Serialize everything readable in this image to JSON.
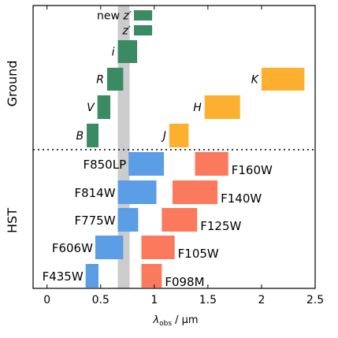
{
  "chart_data": {
    "type": "bar",
    "xlabel": "λobs / μm",
    "xlim": [
      -0.13,
      2.5
    ],
    "x_ticks": [
      "0",
      "0.5",
      "1",
      "1.5",
      "2",
      "2.5"
    ],
    "x_tick_values": [
      0,
      0.5,
      1,
      1.5,
      2,
      2.5
    ],
    "groups": [
      "Ground",
      "HST"
    ],
    "highlight_band": [
      0.66,
      0.77
    ],
    "colors": {
      "ground_green": "#3a8a63",
      "ground_orange": "#fdb030",
      "hst_blue": "#5b9ee6",
      "hst_red": "#fb7a5e",
      "highlight": "#cccccc"
    },
    "ground": [
      {
        "label": "new z′",
        "start": 0.81,
        "end": 0.98,
        "row": "z_new",
        "color": "ground_green",
        "label_side": "left"
      },
      {
        "label": "z′",
        "start": 0.81,
        "end": 0.98,
        "row": "z",
        "color": "ground_green",
        "label_side": "left"
      },
      {
        "label": "i",
        "start": 0.66,
        "end": 0.84,
        "row": "i",
        "color": "ground_green",
        "label_side": "left"
      },
      {
        "label": "R",
        "start": 0.56,
        "end": 0.71,
        "row": "R",
        "color": "ground_green",
        "label_side": "left"
      },
      {
        "label": "V",
        "start": 0.47,
        "end": 0.59,
        "row": "V",
        "color": "ground_green",
        "label_side": "left"
      },
      {
        "label": "B",
        "start": 0.37,
        "end": 0.48,
        "row": "B",
        "color": "ground_green",
        "label_side": "left"
      },
      {
        "label": "J",
        "start": 1.14,
        "end": 1.32,
        "row": "B",
        "color": "ground_orange",
        "label_side": "left"
      },
      {
        "label": "H",
        "start": 1.47,
        "end": 1.8,
        "row": "V",
        "color": "ground_orange",
        "label_side": "left"
      },
      {
        "label": "K",
        "start": 2.0,
        "end": 2.4,
        "row": "R",
        "color": "ground_orange",
        "label_side": "left"
      }
    ],
    "hst": [
      {
        "label": "F850LP",
        "start": 0.76,
        "end": 1.09,
        "row": 0,
        "color": "hst_blue",
        "label_side": "left"
      },
      {
        "label": "F814W",
        "start": 0.66,
        "end": 1.02,
        "row": 1,
        "color": "hst_blue",
        "label_side": "left"
      },
      {
        "label": "F775W",
        "start": 0.66,
        "end": 0.85,
        "row": 2,
        "color": "hst_blue",
        "label_side": "left"
      },
      {
        "label": "F606W",
        "start": 0.45,
        "end": 0.71,
        "row": 3,
        "color": "hst_blue",
        "label_side": "left"
      },
      {
        "label": "F435W",
        "start": 0.36,
        "end": 0.48,
        "row": 4,
        "color": "hst_blue",
        "label_side": "left"
      },
      {
        "label": "F160W",
        "start": 1.38,
        "end": 1.69,
        "row": 0,
        "color": "hst_red",
        "label_side": "right"
      },
      {
        "label": "F140W",
        "start": 1.17,
        "end": 1.59,
        "row": 1,
        "color": "hst_red",
        "label_side": "right"
      },
      {
        "label": "F125W",
        "start": 1.07,
        "end": 1.4,
        "row": 2,
        "color": "hst_red",
        "label_side": "right"
      },
      {
        "label": "F105W",
        "start": 0.88,
        "end": 1.19,
        "row": 3,
        "color": "hst_red",
        "label_side": "right"
      },
      {
        "label": "F098M",
        "start": 0.88,
        "end": 1.07,
        "row": 4,
        "color": "hst_red",
        "label_side": "right"
      }
    ]
  }
}
